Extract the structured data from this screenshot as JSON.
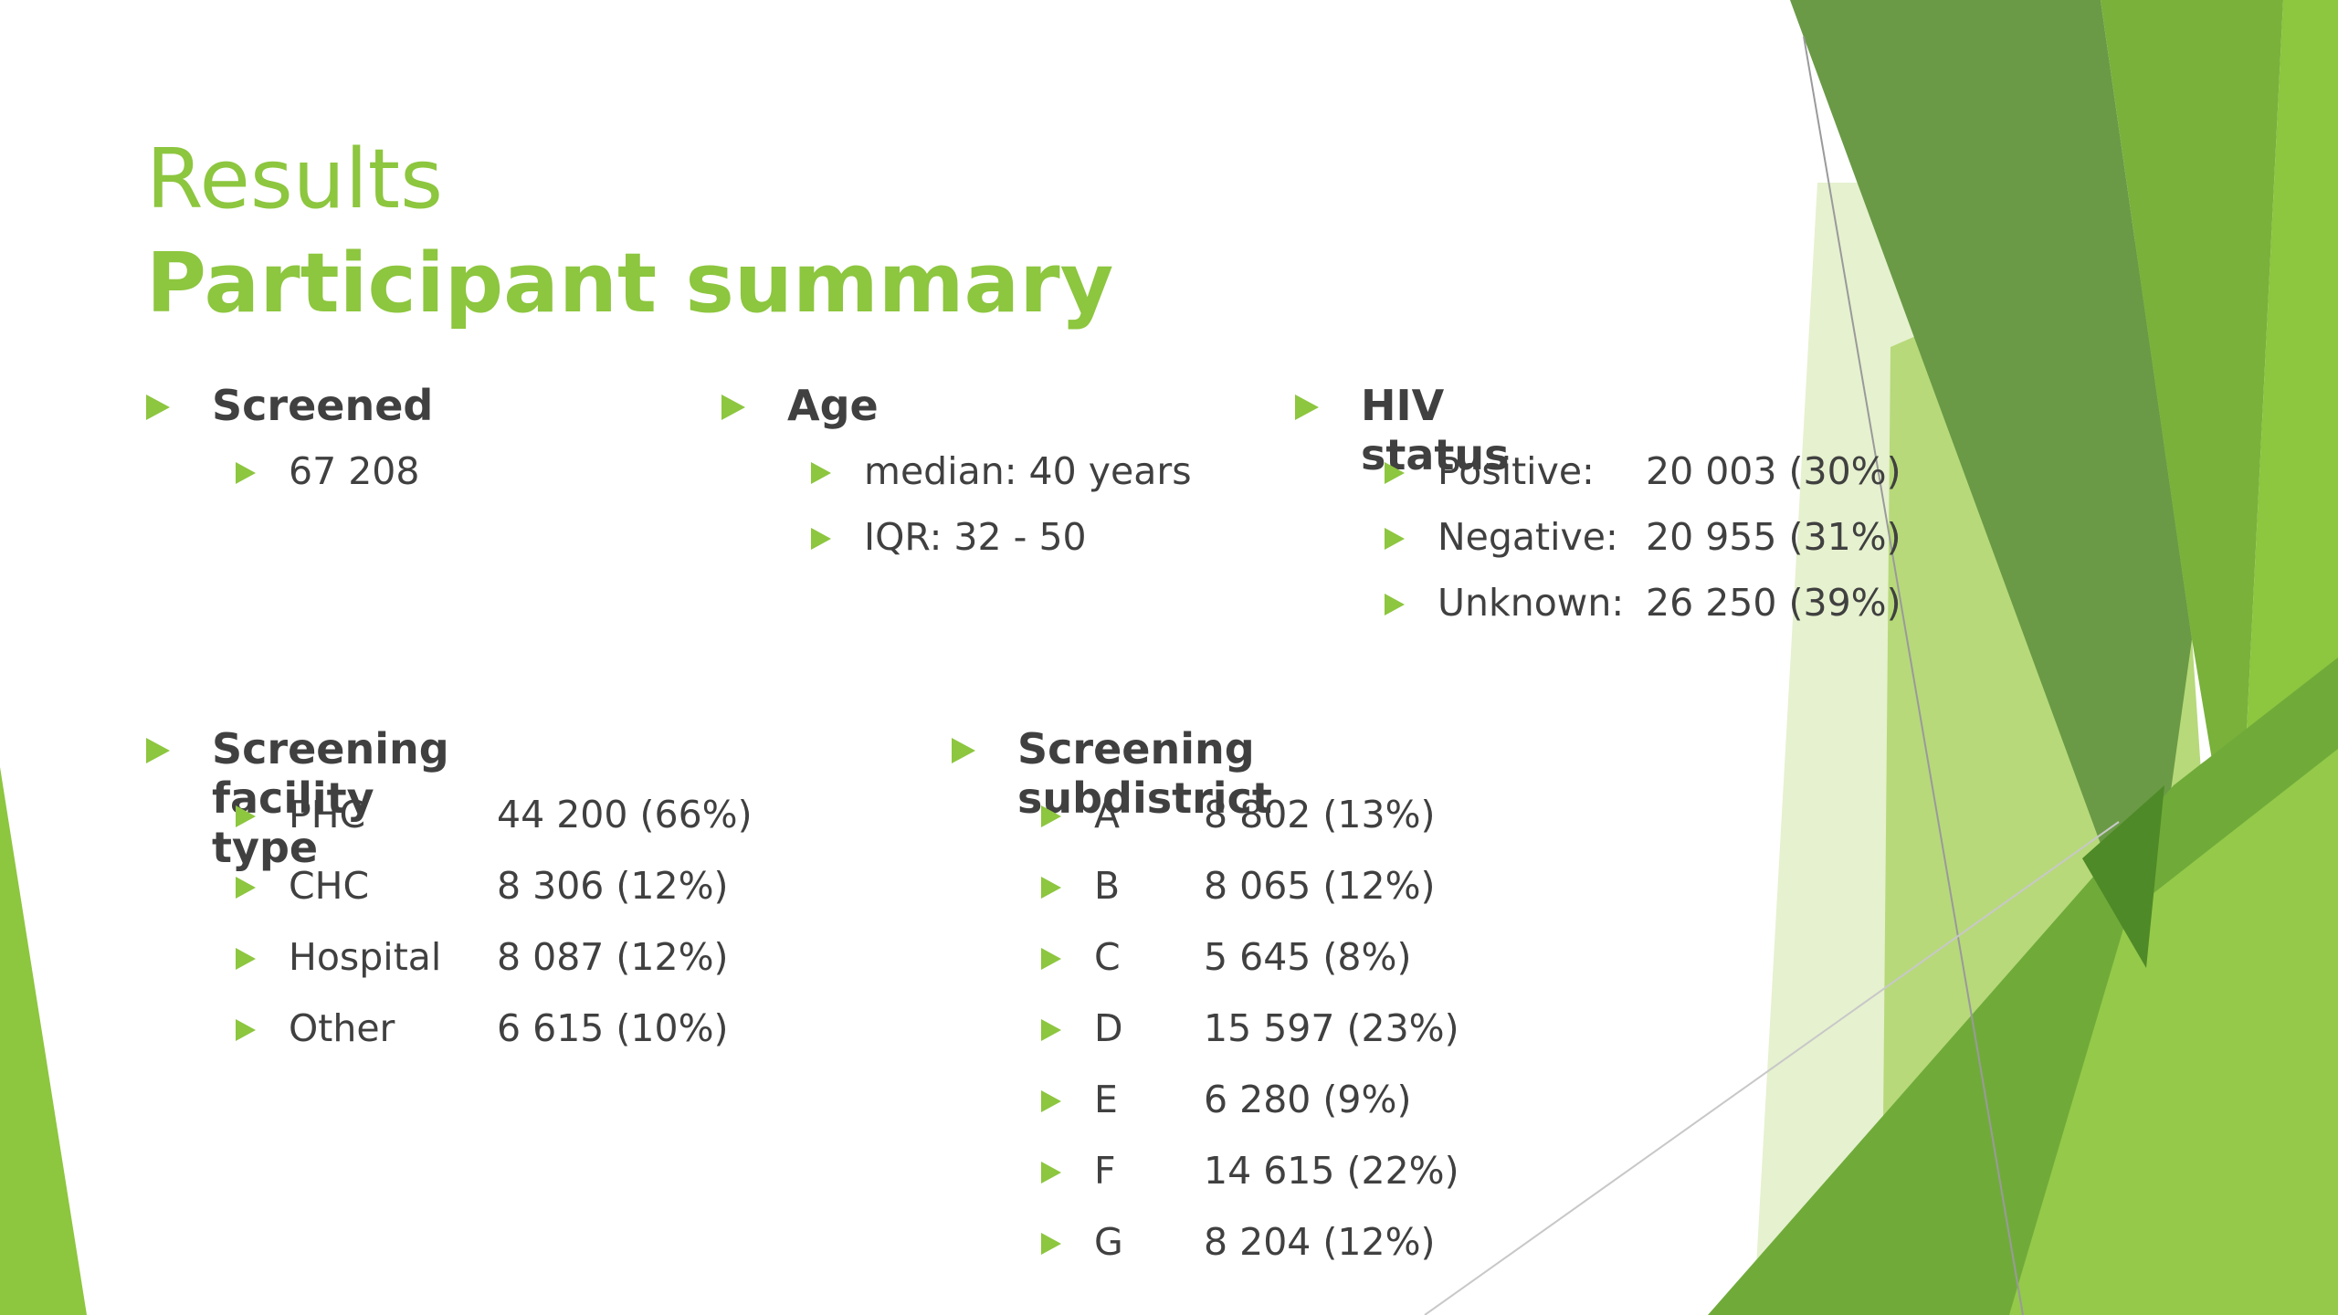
{
  "colors": {
    "accent": "#8dc63f",
    "text": "#404040",
    "green_dark": "#5e9438",
    "green_mid": "#78b13a",
    "green_light": "#a8d05a",
    "green_pale": "#dcebbe"
  },
  "bullet_icon": "triangle-right-icon",
  "title": {
    "line1": "Results",
    "line2": "Participant summary"
  },
  "screened": {
    "heading": "Screened",
    "items": [
      {
        "label": "67 208"
      }
    ]
  },
  "age": {
    "heading": "Age",
    "items": [
      {
        "label": "median: 40 years"
      },
      {
        "label": "IQR: 32 - 50"
      }
    ]
  },
  "hiv": {
    "heading": "HIV status",
    "items": [
      {
        "label": "Positive:",
        "value": "20 003 (30%)"
      },
      {
        "label": "Negative:",
        "value": "20 955 (31%)"
      },
      {
        "label": "Unknown:",
        "value": "26 250 (39%)"
      }
    ]
  },
  "facility": {
    "heading": "Screening facility type",
    "items": [
      {
        "label": "PHC",
        "value": "44 200 (66%)"
      },
      {
        "label": "CHC",
        "value": "8 306 (12%)"
      },
      {
        "label": "Hospital",
        "value": "8 087 (12%)"
      },
      {
        "label": "Other",
        "value": "6 615 (10%)"
      }
    ]
  },
  "subdistrict": {
    "heading": "Screening subdistrict",
    "items": [
      {
        "label": "A",
        "value": "8 802 (13%)"
      },
      {
        "label": "B",
        "value": "8 065 (12%)"
      },
      {
        "label": "C",
        "value": "5 645 (8%)"
      },
      {
        "label": "D",
        "value": "15 597 (23%)"
      },
      {
        "label": "E",
        "value": "6 280 (9%)"
      },
      {
        "label": "F",
        "value": "14 615 (22%)"
      },
      {
        "label": "G",
        "value": "8 204 (12%)"
      }
    ]
  }
}
